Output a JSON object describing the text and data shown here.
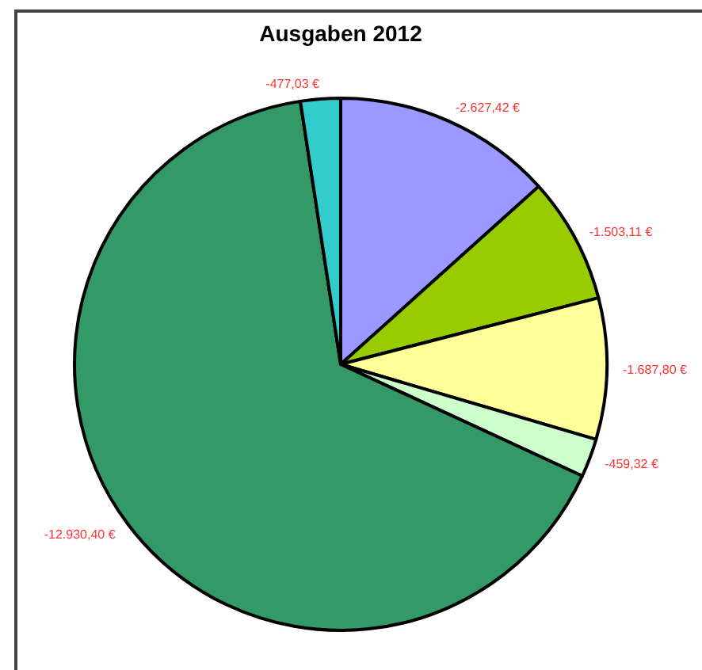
{
  "chart_data": {
    "type": "pie",
    "title": "Ausgaben 2012",
    "categories": [
      null,
      null,
      null,
      null,
      null,
      null
    ],
    "values": [
      13.347,
      7.636,
      8.574,
      2.333,
      65.687,
      2.423
    ],
    "annotations": [
      "-2.627,42 €",
      "-1.503,11 €",
      "-1.687,80 €",
      "-459,32 €",
      "-12.930,40 €",
      "-477,03 €"
    ],
    "colors": [
      "#9999ff",
      "#99cc00",
      "#ffff99",
      "#ccffcc",
      "#339966",
      "#33cccc"
    ]
  }
}
